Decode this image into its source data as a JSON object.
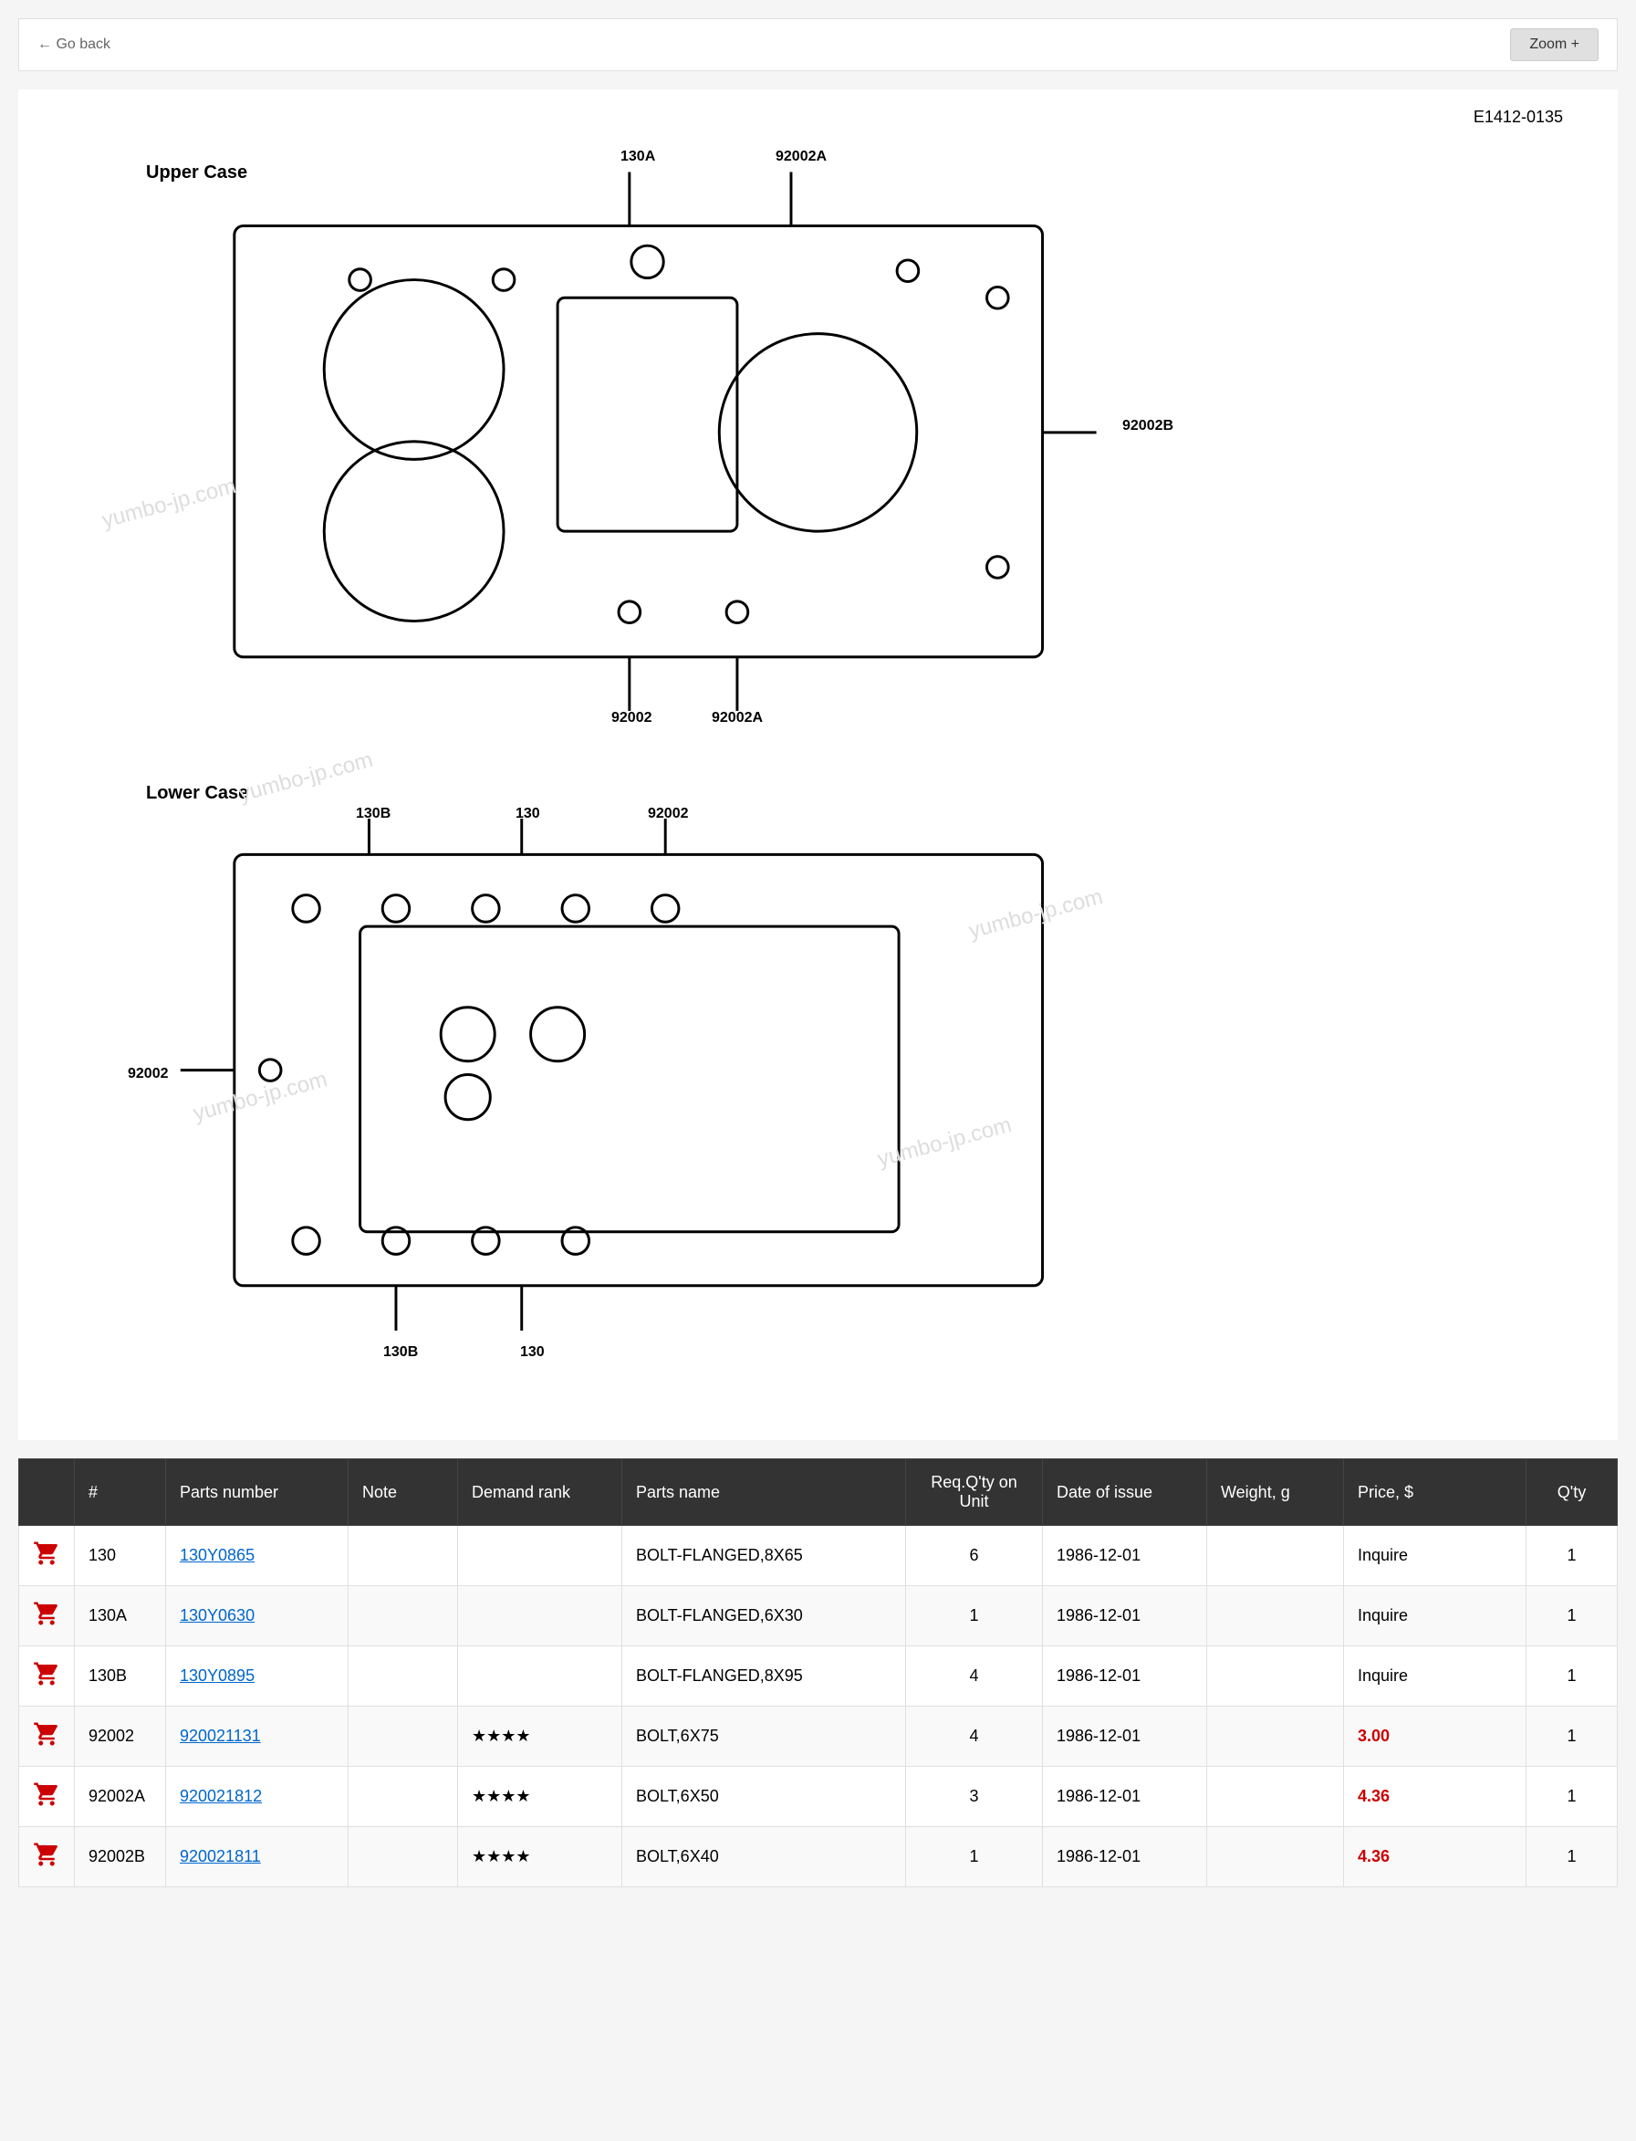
{
  "header": {
    "go_back": "← Go back",
    "zoom": "Zoom +"
  },
  "diagram": {
    "ref_code": "E1412-0135",
    "upper_case_label": "Upper Case",
    "lower_case_label": "Lower Case",
    "watermark": "yumbo-jp.com",
    "callouts": {
      "c130A": "130A",
      "c92002A": "92002A",
      "c92002B": "92002B",
      "c92002_1": "92002",
      "c92002A_2": "92002A",
      "c130B": "130B",
      "c130_1": "130",
      "c92002_2": "92002",
      "c92002_3": "92002",
      "c130B_2": "130B",
      "c130_2": "130"
    }
  },
  "table": {
    "columns": {
      "cart": "",
      "ref": "#",
      "part": "Parts number",
      "note": "Note",
      "rank": "Demand rank",
      "descr": "Parts name",
      "req": "Req.Q'ty on Unit",
      "date": "Date of issue",
      "weight": "Weight, g",
      "price": "Price, $",
      "qty": "Q'ty"
    },
    "rows": [
      {
        "ref": "130",
        "part": "130Y0865",
        "note": "",
        "rank": "",
        "descr": "BOLT-FLANGED,8X65",
        "req": "6",
        "date": "1986-12-01",
        "weight": "",
        "price": "Inquire",
        "qty": "1"
      },
      {
        "ref": "130A",
        "part": "130Y0630",
        "note": "",
        "rank": "",
        "descr": "BOLT-FLANGED,6X30",
        "req": "1",
        "date": "1986-12-01",
        "weight": "",
        "price": "Inquire",
        "qty": "1"
      },
      {
        "ref": "130B",
        "part": "130Y0895",
        "note": "",
        "rank": "",
        "descr": "BOLT-FLANGED,8X95",
        "req": "4",
        "date": "1986-12-01",
        "weight": "",
        "price": "Inquire",
        "qty": "1"
      },
      {
        "ref": "92002",
        "part": "920021131",
        "note": "",
        "rank": "★★★★",
        "descr": "BOLT,6X75",
        "req": "4",
        "date": "1986-12-01",
        "weight": "",
        "price": "3.00",
        "qty": "1"
      },
      {
        "ref": "92002A",
        "part": "920021812",
        "note": "",
        "rank": "★★★★",
        "descr": "BOLT,6X50",
        "req": "3",
        "date": "1986-12-01",
        "weight": "",
        "price": "4.36",
        "qty": "1"
      },
      {
        "ref": "92002B",
        "part": "920021811",
        "note": "",
        "rank": "★★★★",
        "descr": "BOLT,6X40",
        "req": "1",
        "date": "1986-12-01",
        "weight": "",
        "price": "4.36",
        "qty": "1"
      }
    ]
  }
}
